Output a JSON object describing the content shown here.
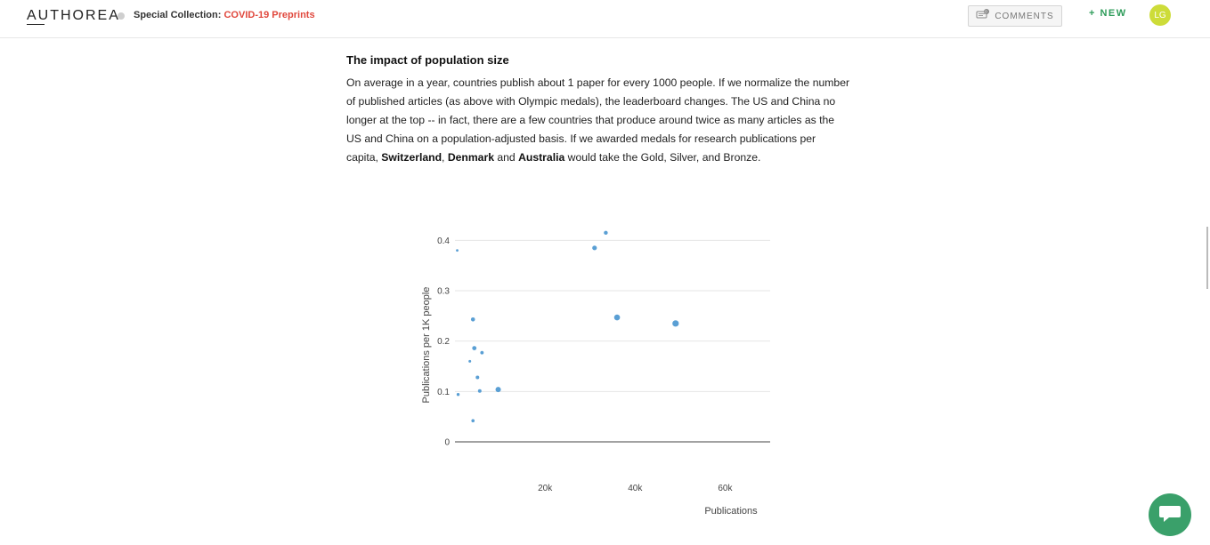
{
  "header": {
    "logo": "AUTHOREA",
    "collection_prefix": "Special Collection:",
    "collection_name": "COVID-19 Preprints",
    "comments_label": "COMMENTS",
    "comments_count": "0",
    "new_label": "+ NEW",
    "avatar_initials": "LG"
  },
  "article": {
    "heading": "The impact of population size",
    "p1": "On average in a year, countries publish about 1 paper for every 1000 people. If we normalize the number of published articles (as above with Olympic medals), the leaderboard changes. The US and China no longer at the top -- in fact, there are a few countries that produce around twice as many articles as the US and China on a population-adjusted basis. If we awarded medals for research publications per capita, ",
    "c1": "Switzerland",
    "sep1": ", ",
    "c2": "Denmark",
    "sep2": " and ",
    "c3": "Australia",
    "p2": " would take the Gold, Silver, and Bronze."
  },
  "chart_data": {
    "type": "scatter",
    "xlabel": "Publications",
    "ylabel": "Publications per 1K people",
    "xlim": [
      0,
      70000
    ],
    "ylim": [
      0,
      0.42
    ],
    "x_ticks": [
      {
        "v": 20000,
        "label": "20k"
      },
      {
        "v": 40000,
        "label": "40k"
      },
      {
        "v": 60000,
        "label": "60k"
      }
    ],
    "y_ticks": [
      {
        "v": 0,
        "label": "0"
      },
      {
        "v": 0.1,
        "label": "0.1"
      },
      {
        "v": 0.2,
        "label": "0.2"
      },
      {
        "v": 0.3,
        "label": "0.3"
      },
      {
        "v": 0.4,
        "label": "0.4"
      }
    ],
    "grid": true,
    "points": [
      {
        "x": 33500,
        "y": 0.415,
        "r": 2.2
      },
      {
        "x": 31000,
        "y": 0.385,
        "r": 2.6
      },
      {
        "x": 500,
        "y": 0.38,
        "r": 1.4
      },
      {
        "x": 36000,
        "y": 0.247,
        "r": 3.3
      },
      {
        "x": 49000,
        "y": 0.235,
        "r": 3.6
      },
      {
        "x": 4000,
        "y": 0.243,
        "r": 2.3
      },
      {
        "x": 4300,
        "y": 0.186,
        "r": 2.4
      },
      {
        "x": 6000,
        "y": 0.177,
        "r": 1.9
      },
      {
        "x": 3300,
        "y": 0.16,
        "r": 1.5
      },
      {
        "x": 5000,
        "y": 0.128,
        "r": 2.0
      },
      {
        "x": 9600,
        "y": 0.104,
        "r": 3.0
      },
      {
        "x": 5500,
        "y": 0.101,
        "r": 2.0
      },
      {
        "x": 700,
        "y": 0.094,
        "r": 1.7
      },
      {
        "x": 4000,
        "y": 0.042,
        "r": 1.8
      }
    ],
    "color": "#5a9fd4"
  },
  "colors": {
    "accent": "#e0473c",
    "new": "#2e9c5a",
    "avatar": "#cddc39",
    "chat": "#3aa06a"
  }
}
